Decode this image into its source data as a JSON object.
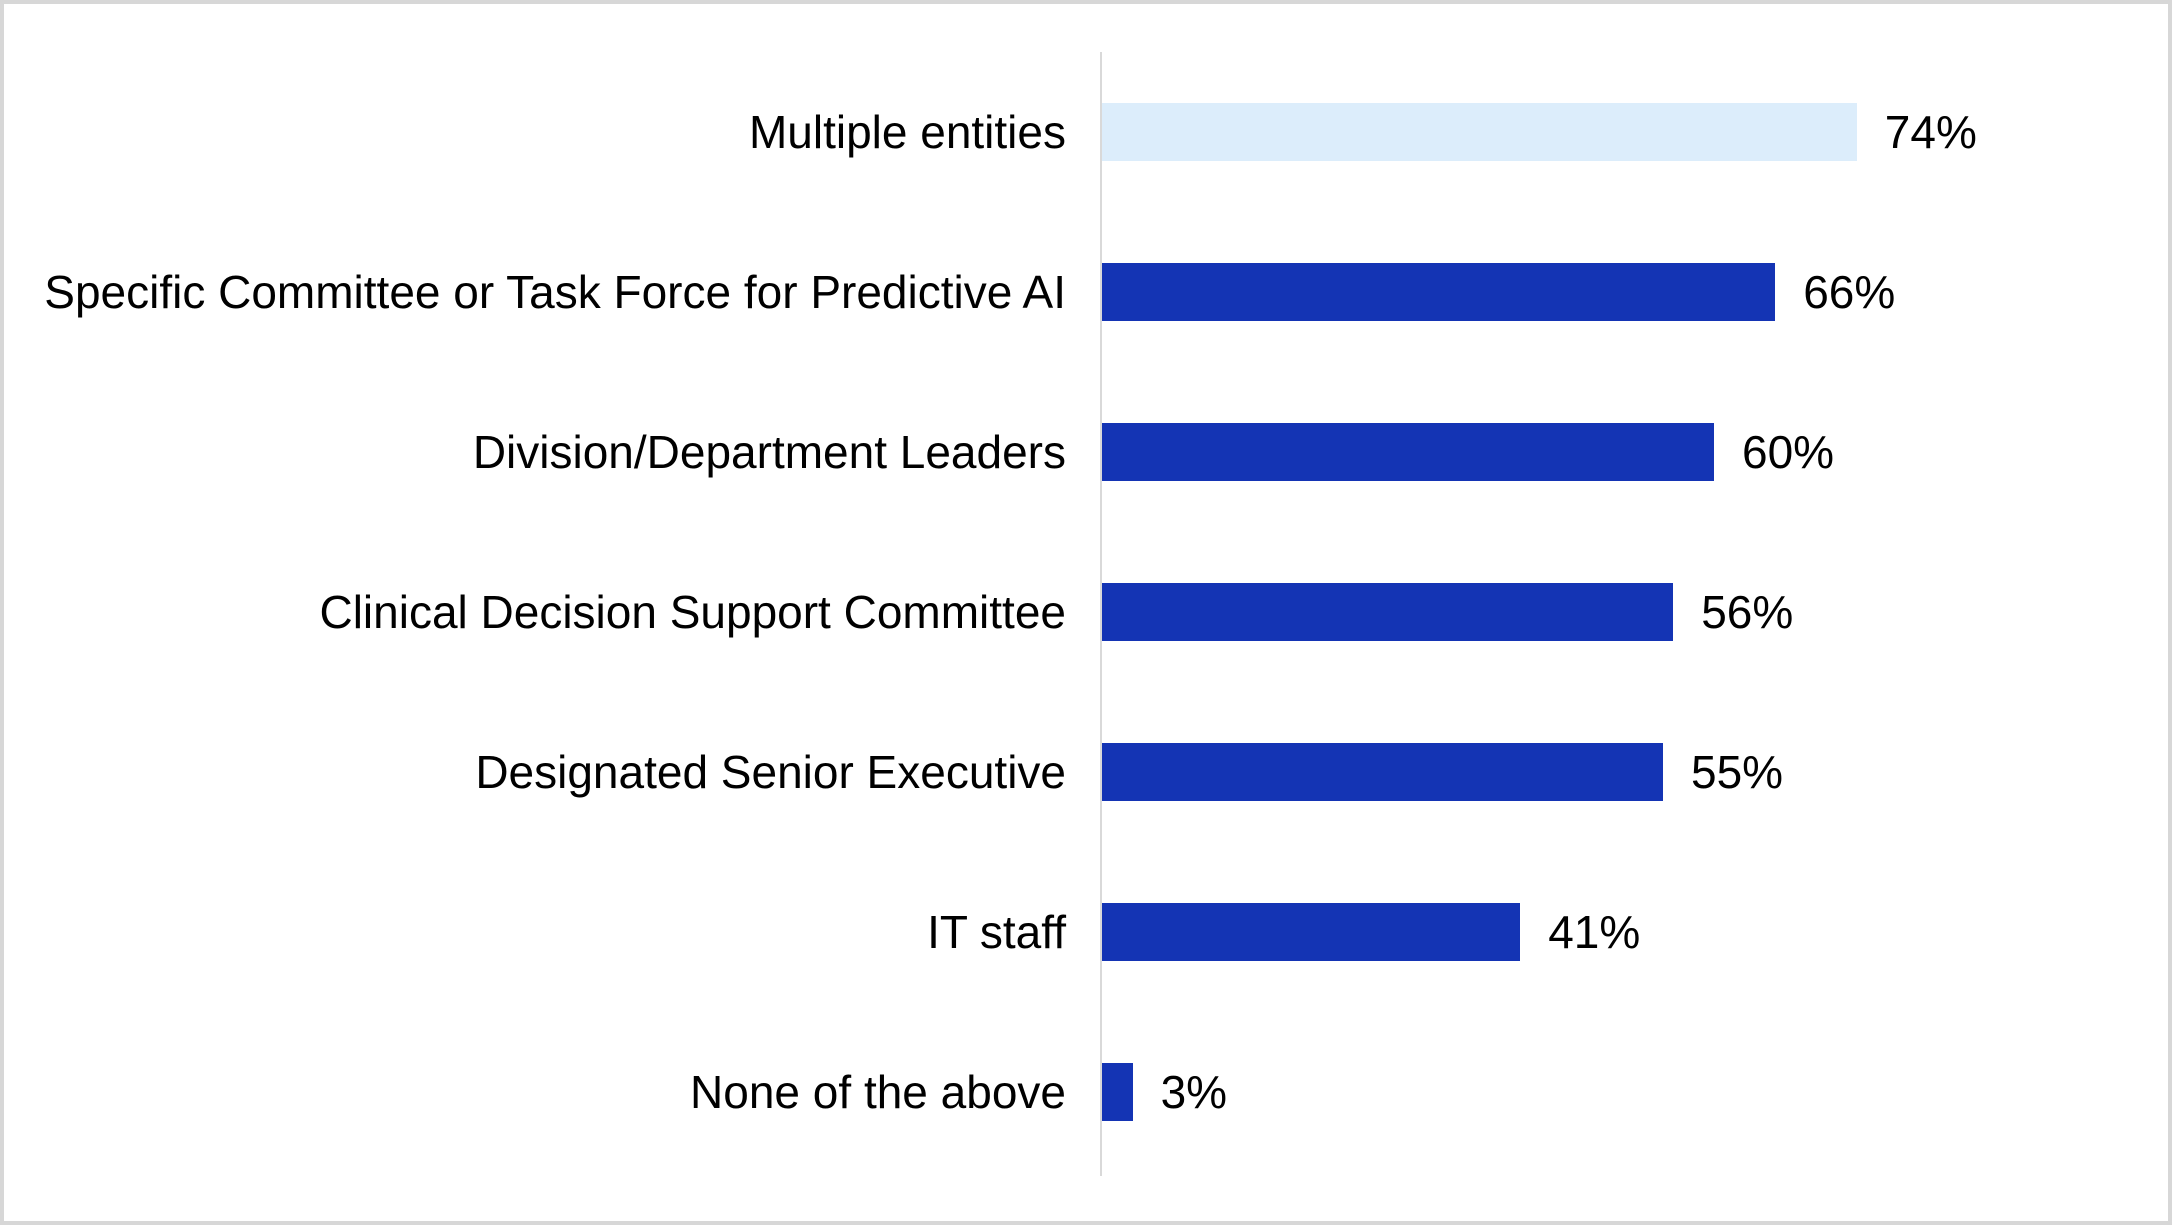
{
  "window": {
    "background_color": "#FFFFFF",
    "border_color": "#D7D7D7"
  },
  "chart_data": {
    "type": "bar",
    "orientation": "horizontal",
    "title": "",
    "xlabel": "",
    "ylabel": "",
    "xlim": [
      0,
      100
    ],
    "grid": false,
    "legend": null,
    "axis_line_color": "#D9D9D9",
    "text_color": "#000000",
    "bar_color_default": "#1434B4",
    "bar_color_highlight": "#DCEDFB",
    "highlight_index": 0,
    "categories": [
      "Multiple entities",
      "Specific Committee or Task Force for Predictive AI",
      "Division/Department Leaders",
      "Clinical Decision Support Committee",
      "Designated Senior Executive",
      "IT staff",
      "None of the above"
    ],
    "values": [
      74,
      66,
      60,
      56,
      55,
      41,
      3
    ],
    "value_labels": [
      "74%",
      "66%",
      "60%",
      "56%",
      "55%",
      "41%",
      "3%"
    ]
  }
}
